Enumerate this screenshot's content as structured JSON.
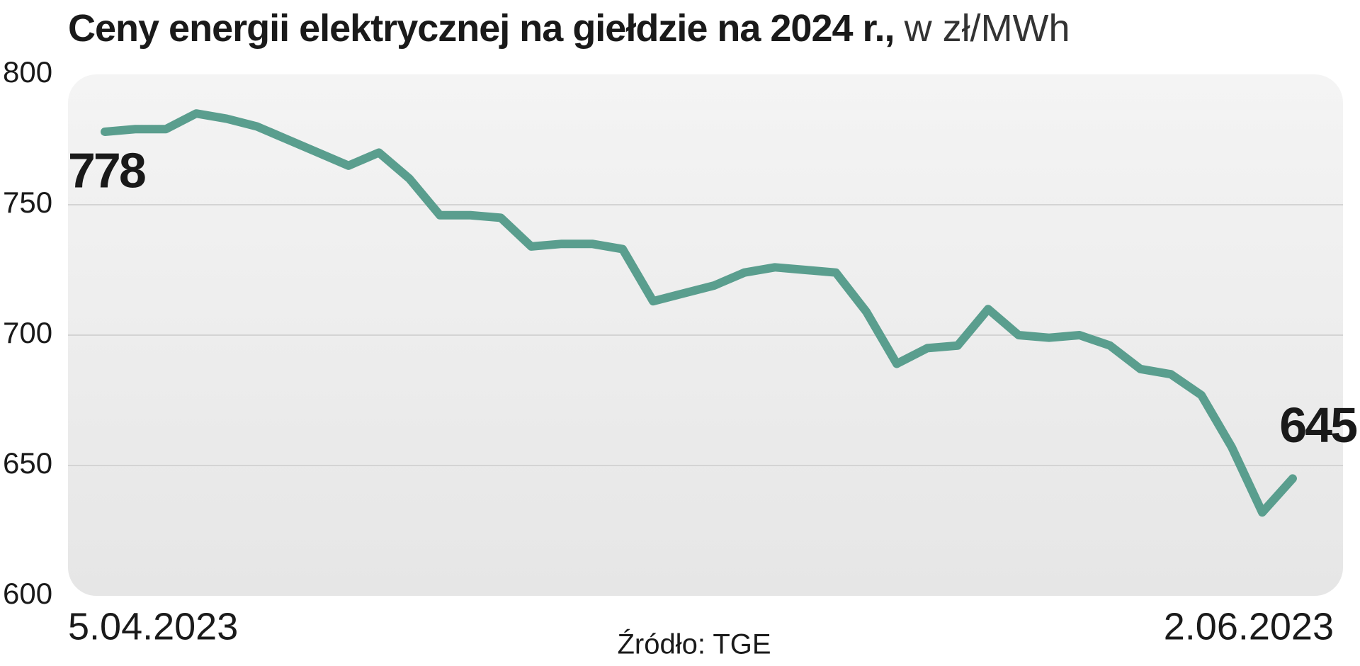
{
  "chart_data": {
    "type": "line",
    "title": "Ceny energii elektrycznej na giełdzie na 2024 r.,",
    "unit": "w zł/MWh",
    "source": "Źródło: TGE",
    "categories": [
      "5.04.2023",
      null,
      null,
      null,
      null,
      null,
      null,
      null,
      null,
      null,
      null,
      null,
      null,
      null,
      null,
      null,
      null,
      null,
      null,
      null,
      null,
      null,
      null,
      null,
      null,
      null,
      null,
      null,
      null,
      null,
      null,
      null,
      null,
      null,
      null,
      null,
      null,
      null,
      null,
      "2.06.2023"
    ],
    "values": [
      778,
      779,
      779,
      785,
      783,
      780,
      775,
      770,
      765,
      770,
      760,
      746,
      746,
      745,
      734,
      735,
      735,
      733,
      713,
      716,
      719,
      724,
      726,
      725,
      724,
      709,
      689,
      695,
      696,
      710,
      700,
      699,
      700,
      696,
      687,
      685,
      677,
      657,
      632,
      645
    ],
    "color": "#5a9e8e",
    "ylim": [
      600,
      800
    ],
    "yticks": [
      600,
      650,
      700,
      750,
      800
    ],
    "grid": true
  }
}
